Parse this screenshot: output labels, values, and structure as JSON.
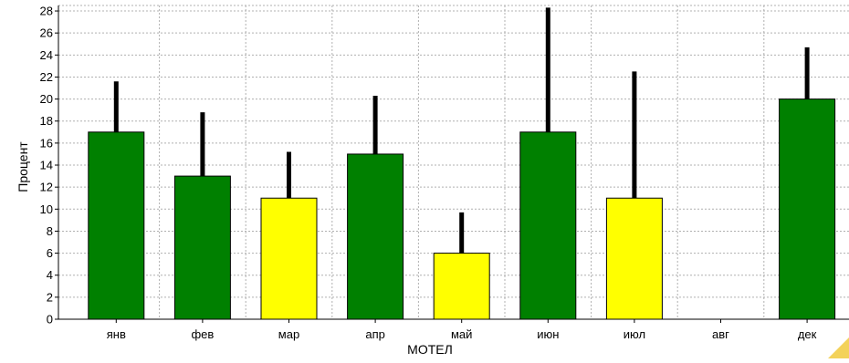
{
  "chart_data": {
    "type": "bar",
    "xlabel": "МОТЕЛ",
    "ylabel": "Процент",
    "ylim": [
      0,
      28.5
    ],
    "yticks": [
      0,
      2,
      4,
      6,
      8,
      10,
      12,
      14,
      16,
      18,
      20,
      22,
      24,
      26,
      28
    ],
    "grid": true,
    "categories": [
      "янв",
      "фев",
      "мар",
      "апр",
      "май",
      "июн",
      "июл",
      "авг",
      "дек"
    ],
    "values": [
      17,
      13,
      11,
      15,
      6,
      17,
      11,
      null,
      20
    ],
    "error_upper": [
      21.6,
      18.8,
      15.2,
      20.3,
      9.7,
      28.3,
      22.5,
      null,
      24.7
    ],
    "bar_colors": [
      "#008000",
      "#008000",
      "#ffff00",
      "#008000",
      "#ffff00",
      "#008000",
      "#ffff00",
      null,
      "#008000"
    ]
  },
  "colors": {
    "background": "#ffffff",
    "grid": "#b0b0b0",
    "axis": "#000000",
    "error_bar": "#000000",
    "corner_accent": "#f3d25a"
  }
}
